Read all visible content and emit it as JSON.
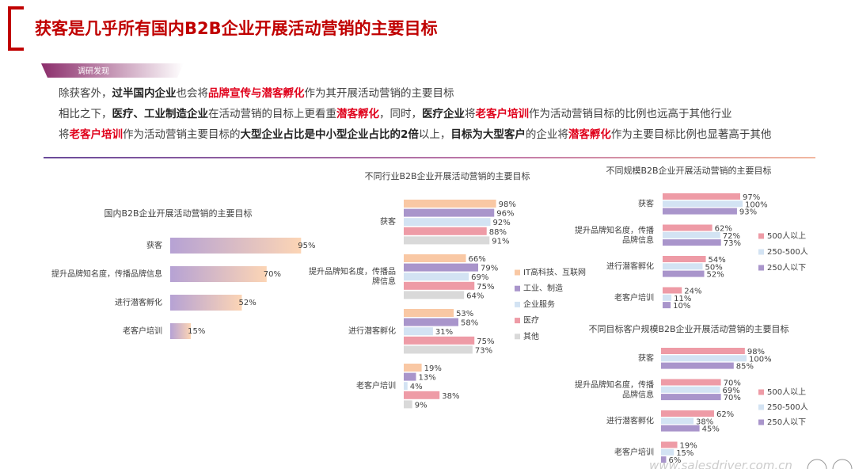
{
  "header": {
    "title": "获客是几乎所有国内B2B企业开展活动营销的主要目标",
    "tag": "调研发现"
  },
  "paragraphs": [
    [
      {
        "text": "除获客外，",
        "style": "normal"
      },
      {
        "text": "过半国内企业",
        "style": "bold"
      },
      {
        "text": "也会将",
        "style": "normal"
      },
      {
        "text": "品牌宣传与潜客孵化",
        "style": "red"
      },
      {
        "text": "作为其开展活动营销的主要目标",
        "style": "normal"
      }
    ],
    [
      {
        "text": "相比之下，",
        "style": "normal"
      },
      {
        "text": "医疗、工业制造企业",
        "style": "bold"
      },
      {
        "text": "在活动营销的目标上更看重",
        "style": "normal"
      },
      {
        "text": "潜客孵化",
        "style": "red"
      },
      {
        "text": "，同时，",
        "style": "normal"
      },
      {
        "text": "医疗企业",
        "style": "bold"
      },
      {
        "text": "将",
        "style": "normal"
      },
      {
        "text": "老客户培训",
        "style": "red"
      },
      {
        "text": "作为活动营销目标的比例也远高于其他行业",
        "style": "normal"
      }
    ],
    [
      {
        "text": "将",
        "style": "normal"
      },
      {
        "text": "老客户培训",
        "style": "red"
      },
      {
        "text": "作为活动营销主要目标的",
        "style": "normal"
      },
      {
        "text": "大型企业占比是中小型企业占比的2倍",
        "style": "bold"
      },
      {
        "text": "以上，",
        "style": "normal"
      },
      {
        "text": "目标为大型客户",
        "style": "bold"
      },
      {
        "text": "的企业将",
        "style": "normal"
      },
      {
        "text": "潜客孵化",
        "style": "red"
      },
      {
        "text": "作为主要目标比例也显著高于其他",
        "style": "normal"
      }
    ]
  ],
  "watermark": "www.salesdriver.com.cn",
  "chart_data": [
    {
      "type": "hbar",
      "title": "国内B2B企业开展活动营销的主要目标",
      "categories": [
        "获客",
        "提升品牌知名度，传播品牌信息",
        "进行潜客孵化",
        "老客户培训"
      ],
      "values": [
        95,
        70,
        52,
        15
      ],
      "value_labels": [
        "95%",
        "70%",
        "52%",
        "15%"
      ],
      "gradient": [
        "#b6a2d4",
        "#fcd5b5"
      ],
      "xlim": [
        0,
        100
      ]
    },
    {
      "type": "grouped-hbar",
      "title": "不同行业B2B企业开展活动营销的主要目标",
      "categories": [
        "获客",
        "提升品牌知名度，传播品牌信息",
        "进行潜客孵化",
        "老客户培训"
      ],
      "series": [
        {
          "name": "IT高科技、互联网",
          "color": "#f9c8a4",
          "values": [
            98,
            66,
            53,
            19
          ],
          "value_labels": [
            "98%",
            "66%",
            "53%",
            "19%"
          ]
        },
        {
          "name": "工业、制造",
          "color": "#a995cb",
          "values": [
            96,
            79,
            58,
            13
          ],
          "value_labels": [
            "96%",
            "79%",
            "58%",
            "13%"
          ]
        },
        {
          "name": "企业服务",
          "color": "#d3e3f3",
          "values": [
            92,
            69,
            31,
            4
          ],
          "value_labels": [
            "92%",
            "69%",
            "31%",
            "4%"
          ]
        },
        {
          "name": "医疗",
          "color": "#ee9ba6",
          "values": [
            88,
            75,
            75,
            38
          ],
          "value_labels": [
            "88%",
            "75%",
            "75%",
            "38%"
          ]
        },
        {
          "name": "其他",
          "color": "#d9d9d9",
          "values": [
            91,
            64,
            73,
            9
          ],
          "value_labels": [
            "91%",
            "64%",
            "73%",
            "9%"
          ]
        }
      ],
      "xlim": [
        0,
        100
      ],
      "legend": "right"
    },
    {
      "type": "grouped-hbar",
      "title": "不同规模B2B企业开展活动营销的主要目标",
      "categories": [
        "获客",
        "提升品牌知名度，传播品牌信息",
        "进行潜客孵化",
        "老客户培训"
      ],
      "series": [
        {
          "name": "500人以上",
          "color": "#ee9ba6",
          "values": [
            97,
            62,
            54,
            24
          ],
          "value_labels": [
            "97%",
            "62%",
            "54%",
            "24%"
          ]
        },
        {
          "name": "250-500人",
          "color": "#d3e3f3",
          "values": [
            100,
            72,
            50,
            11
          ],
          "value_labels": [
            "100%",
            "72%",
            "50%",
            "11%"
          ]
        },
        {
          "name": "250人以下",
          "color": "#a995cb",
          "values": [
            93,
            73,
            52,
            10
          ],
          "value_labels": [
            "93%",
            "73%",
            "52%",
            "10%"
          ]
        }
      ],
      "xlim": [
        0,
        100
      ],
      "legend": "right"
    },
    {
      "type": "grouped-hbar",
      "title": "不同目标客户规模B2B企业开展活动营销的主要目标",
      "categories": [
        "获客",
        "提升品牌知名度，传播品牌信息",
        "进行潜客孵化",
        "老客户培训"
      ],
      "series": [
        {
          "name": "500人以上",
          "color": "#ee9ba6",
          "values": [
            98,
            70,
            62,
            19
          ],
          "value_labels": [
            "98%",
            "70%",
            "62%",
            "19%"
          ]
        },
        {
          "name": "250-500人",
          "color": "#d3e3f3",
          "values": [
            100,
            69,
            38,
            15
          ],
          "value_labels": [
            "100%",
            "69%",
            "38%",
            "15%"
          ]
        },
        {
          "name": "250人以下",
          "color": "#a995cb",
          "values": [
            85,
            70,
            45,
            6
          ],
          "value_labels": [
            "85%",
            "70%",
            "45%",
            "6%"
          ]
        }
      ],
      "xlim": [
        0,
        100
      ],
      "legend": "right"
    }
  ]
}
